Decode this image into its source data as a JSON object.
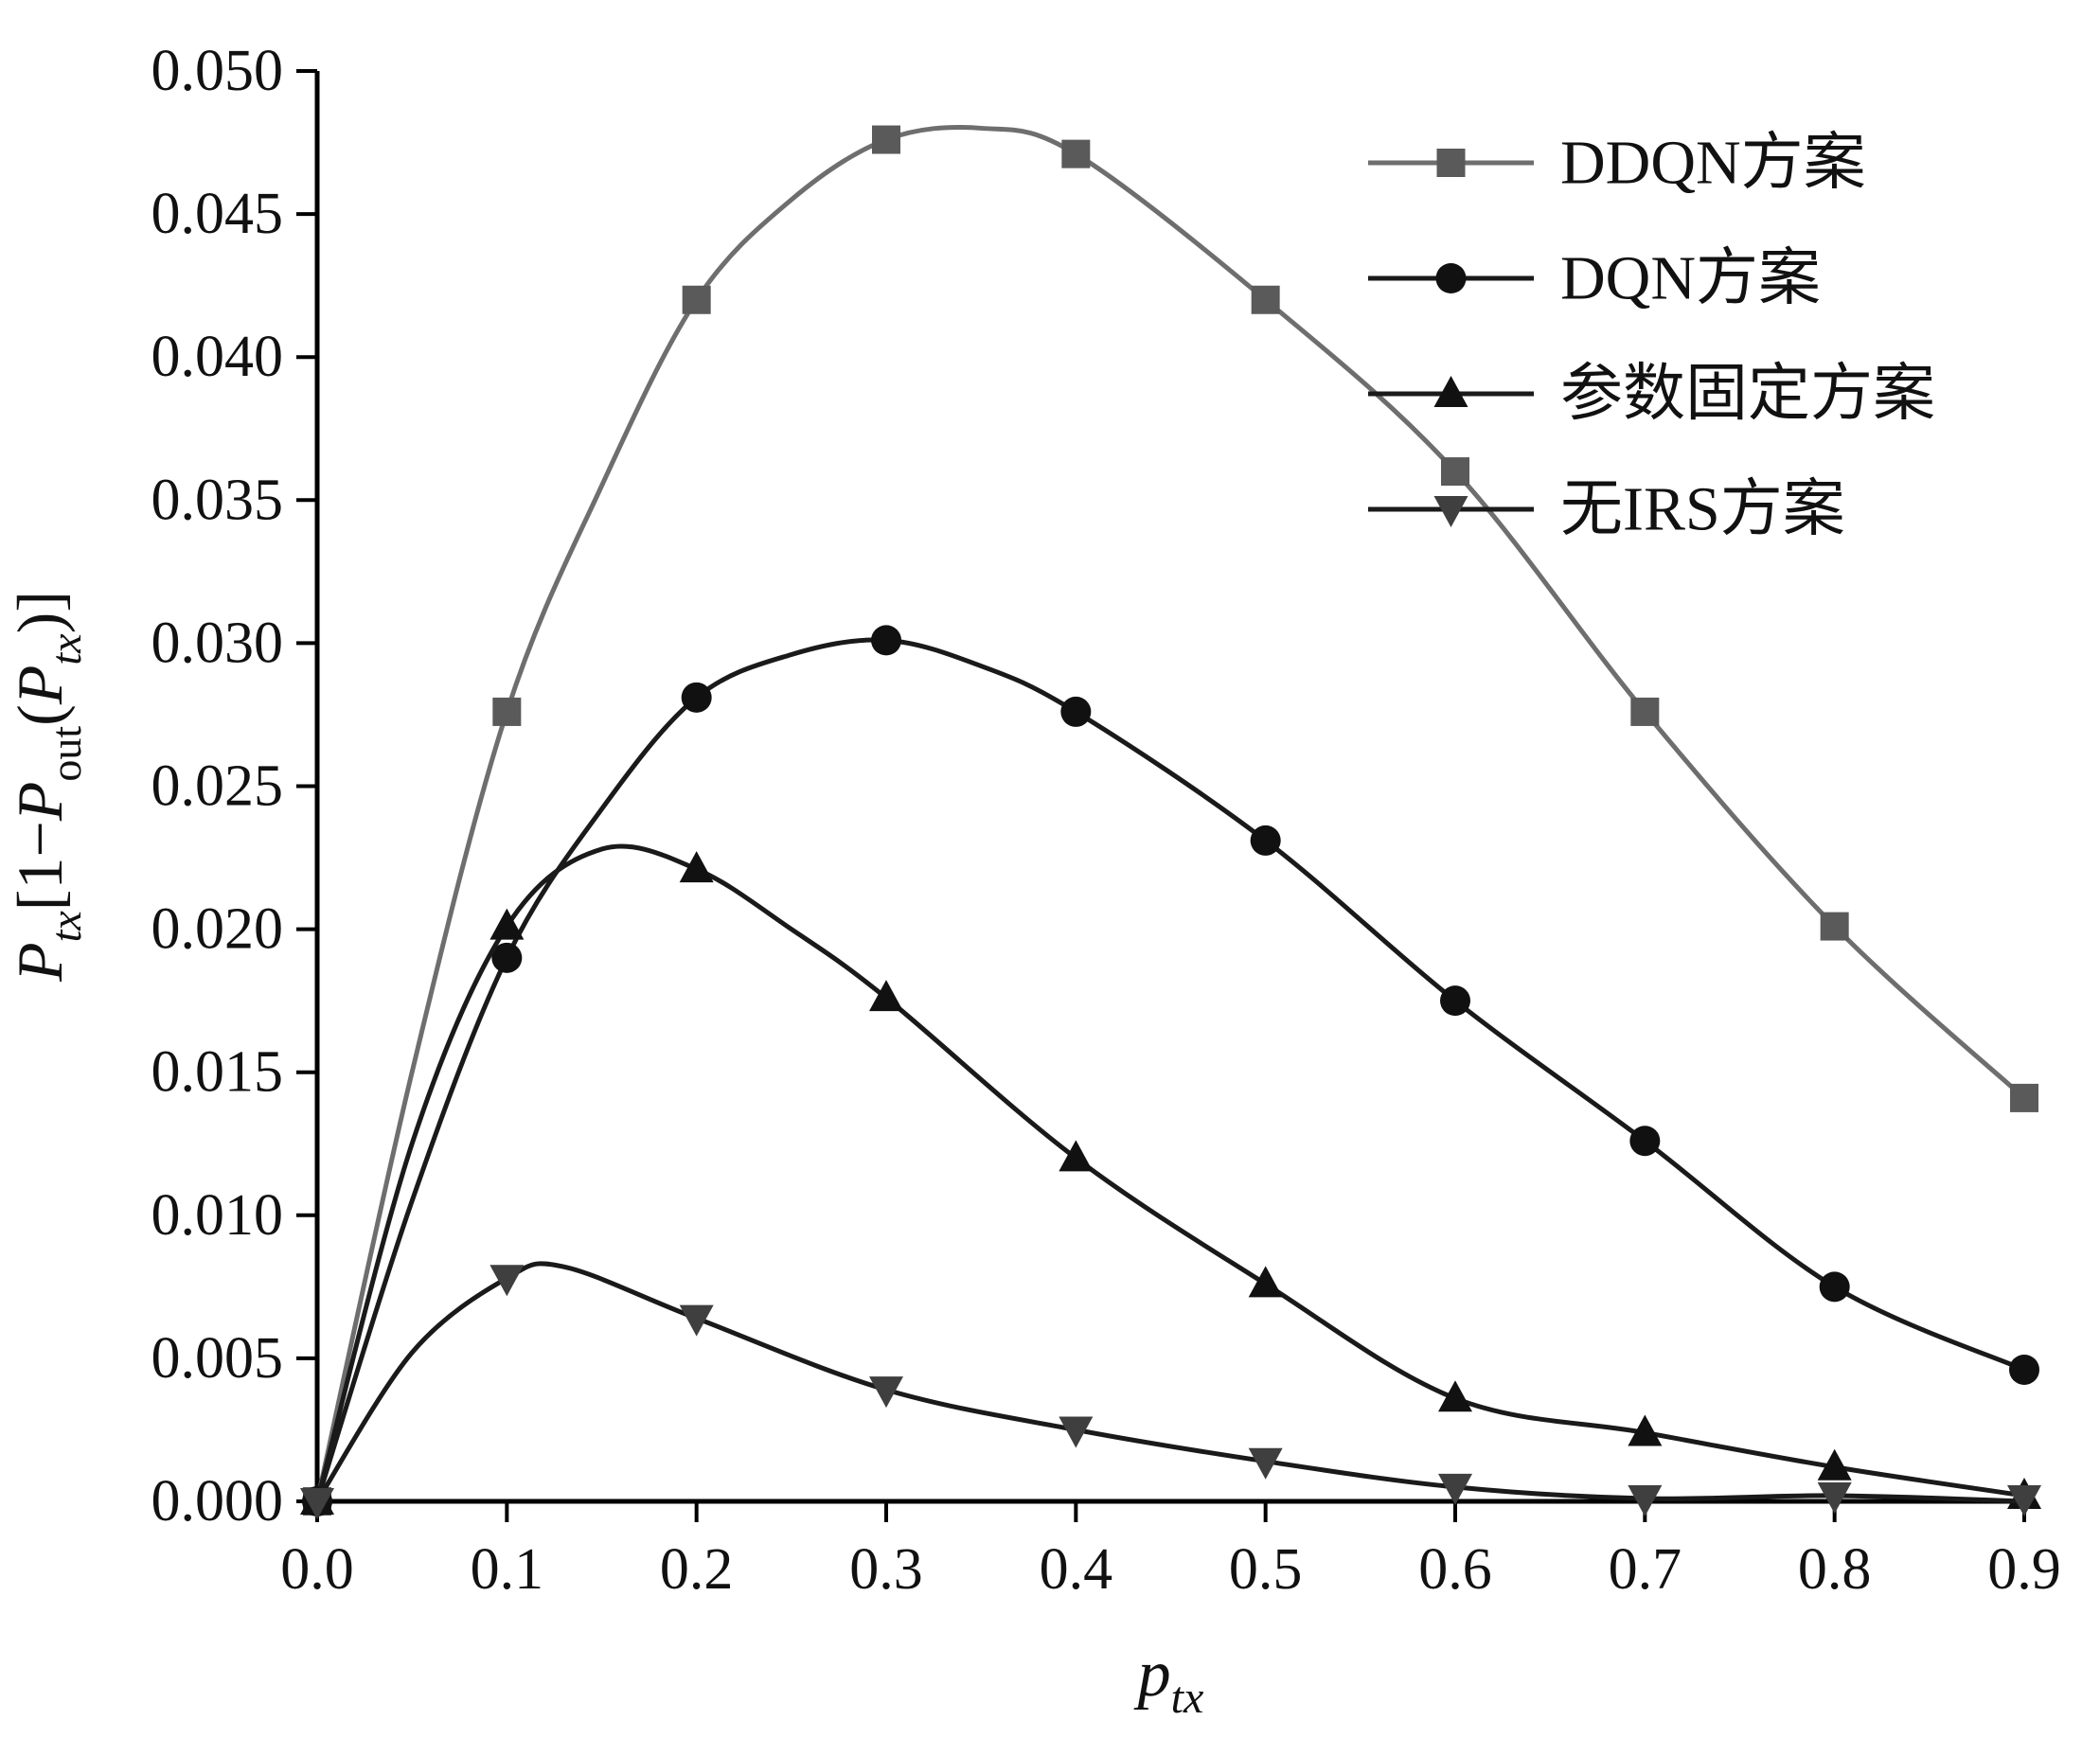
{
  "chart_data": {
    "type": "line",
    "title": "",
    "xlabel": {
      "main": "p",
      "sub": "tx"
    },
    "ylabel_parts": [
      {
        "t": "P",
        "i": 1
      },
      {
        "t": "tx",
        "i": 1,
        "s": 1
      },
      {
        "t": "[1−"
      },
      {
        "t": "P",
        "i": 1
      },
      {
        "t": "out",
        "s": 1
      },
      {
        "t": "("
      },
      {
        "t": "P",
        "i": 1
      },
      {
        "t": "tx",
        "i": 1,
        "s": 1
      },
      {
        "t": ")]"
      }
    ],
    "xlim": [
      0.0,
      0.9
    ],
    "ylim": [
      0.0,
      0.05
    ],
    "x_ticks": [
      0.0,
      0.1,
      0.2,
      0.3,
      0.4,
      0.5,
      0.6,
      0.7,
      0.8,
      0.9
    ],
    "y_ticks": [
      0.0,
      0.005,
      0.01,
      0.015,
      0.02,
      0.025,
      0.03,
      0.035,
      0.04,
      0.045,
      0.05
    ],
    "grid": false,
    "legend_position": "top-right",
    "categories": [
      0.0,
      0.1,
      0.2,
      0.3,
      0.4,
      0.5,
      0.6,
      0.7,
      0.8,
      0.9
    ],
    "series": [
      {
        "name": "DDQN方案",
        "color": "#6e6e6e",
        "marker": "square",
        "marker_color": "#5a5a5a",
        "values": [
          0.0,
          0.0276,
          0.042,
          0.0476,
          0.0471,
          0.042,
          0.036,
          0.0276,
          0.0201,
          0.0141
        ],
        "line_points": [
          [
            0,
            0
          ],
          [
            0.05,
            0.015
          ],
          [
            0.1,
            0.0276
          ],
          [
            0.15,
            0.0355
          ],
          [
            0.2,
            0.042
          ],
          [
            0.25,
            0.0455
          ],
          [
            0.3,
            0.0476
          ],
          [
            0.35,
            0.048
          ],
          [
            0.4,
            0.0471
          ],
          [
            0.5,
            0.042
          ],
          [
            0.6,
            0.036
          ],
          [
            0.7,
            0.0276
          ],
          [
            0.8,
            0.0201
          ],
          [
            0.9,
            0.0141
          ]
        ]
      },
      {
        "name": "DQN方案",
        "color": "#1a1a1a",
        "marker": "circle",
        "marker_color": "#111111",
        "values": [
          0.0,
          0.019,
          0.0281,
          0.0301,
          0.0276,
          0.0231,
          0.0175,
          0.0126,
          0.0075,
          0.0046
        ],
        "line_points": [
          [
            0,
            0
          ],
          [
            0.05,
            0.0105
          ],
          [
            0.1,
            0.019
          ],
          [
            0.15,
            0.0242
          ],
          [
            0.2,
            0.0281
          ],
          [
            0.25,
            0.0296
          ],
          [
            0.3,
            0.0301
          ],
          [
            0.35,
            0.0292
          ],
          [
            0.4,
            0.0276
          ],
          [
            0.5,
            0.0231
          ],
          [
            0.6,
            0.0175
          ],
          [
            0.7,
            0.0126
          ],
          [
            0.8,
            0.0075
          ],
          [
            0.9,
            0.0046
          ]
        ]
      },
      {
        "name": "参数固定方案",
        "color": "#1a1a1a",
        "marker": "triangle-up",
        "marker_color": "#111111",
        "values": [
          0.0,
          0.0201,
          0.0221,
          0.0176,
          0.012,
          0.0076,
          0.0036,
          0.0024,
          0.0012,
          0.0002
        ],
        "line_points": [
          [
            0,
            0
          ],
          [
            0.05,
            0.0125
          ],
          [
            0.1,
            0.0201
          ],
          [
            0.15,
            0.0228
          ],
          [
            0.2,
            0.0221
          ],
          [
            0.25,
            0.02
          ],
          [
            0.3,
            0.0176
          ],
          [
            0.4,
            0.012
          ],
          [
            0.5,
            0.0076
          ],
          [
            0.6,
            0.0036
          ],
          [
            0.7,
            0.0024
          ],
          [
            0.8,
            0.0012
          ],
          [
            0.9,
            0.0002
          ]
        ]
      },
      {
        "name": "无IRS方案",
        "color": "#1a1a1a",
        "marker": "triangle-down",
        "marker_color": "#3f3f3f",
        "values": [
          0.0,
          0.0078,
          0.0064,
          0.0039,
          0.0025,
          0.0014,
          0.0005,
          0.0001,
          0.0002,
          0.0001
        ],
        "line_points": [
          [
            0,
            0
          ],
          [
            0.05,
            0.0052
          ],
          [
            0.1,
            0.0078
          ],
          [
            0.13,
            0.0082
          ],
          [
            0.2,
            0.0064
          ],
          [
            0.3,
            0.0039
          ],
          [
            0.4,
            0.0025
          ],
          [
            0.5,
            0.0014
          ],
          [
            0.6,
            0.0005
          ],
          [
            0.7,
            0.0001
          ],
          [
            0.8,
            0.0002
          ],
          [
            0.9,
            0.0
          ]
        ]
      }
    ]
  }
}
